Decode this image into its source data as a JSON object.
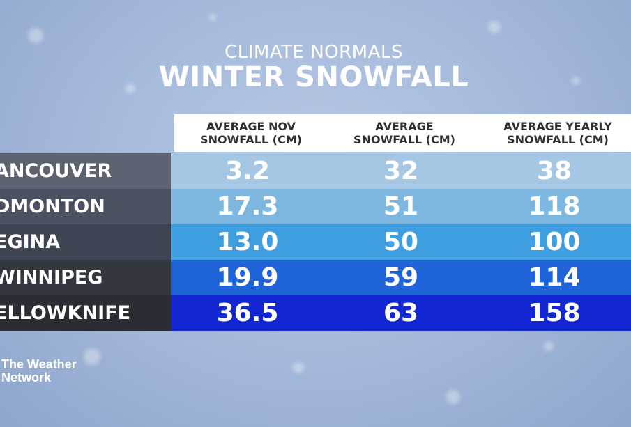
{
  "subtitle": "CLIMATE NORMALS",
  "title": "WINTER SNOWFALL",
  "logo": {
    "line1": "The Weather",
    "line2": "Network"
  },
  "colors": {
    "row_backgrounds": [
      "#a6c7e4",
      "#7db7e0",
      "#3f9ee0",
      "#1f63d8",
      "#1226d2"
    ],
    "city_backgrounds": [
      "#5b6270",
      "#4a5160",
      "#3e4451",
      "#33373f",
      "#2a2d33"
    ]
  },
  "chart_data": {
    "type": "table",
    "title": "WINTER SNOWFALL",
    "subtitle": "CLIMATE NORMALS",
    "columns": [
      "AVERAGE NOV SNOWFALL (CM)",
      "AVERAGE SNOWFALL (CM)",
      "AVERAGE YEARLY SNOWFALL (CM)"
    ],
    "column_labels": [
      [
        "AVERAGE NOV",
        "SNOWFALL (CM)"
      ],
      [
        "AVERAGE",
        "SNOWFALL (CM)"
      ],
      [
        "AVERAGE YEARLY",
        "SNOWFALL (CM)"
      ]
    ],
    "rows": [
      {
        "city": "ANCOUVER",
        "values": [
          "3.2",
          "32",
          "38"
        ]
      },
      {
        "city": "DMONTON",
        "values": [
          "17.3",
          "51",
          "118"
        ]
      },
      {
        "city": "EGINA",
        "values": [
          "13.0",
          "50",
          "100"
        ]
      },
      {
        "city": "WINNIPEG",
        "values": [
          "19.9",
          "59",
          "114"
        ]
      },
      {
        "city": "ELLOWKNIFE",
        "values": [
          "36.5",
          "63",
          "158"
        ]
      }
    ]
  }
}
